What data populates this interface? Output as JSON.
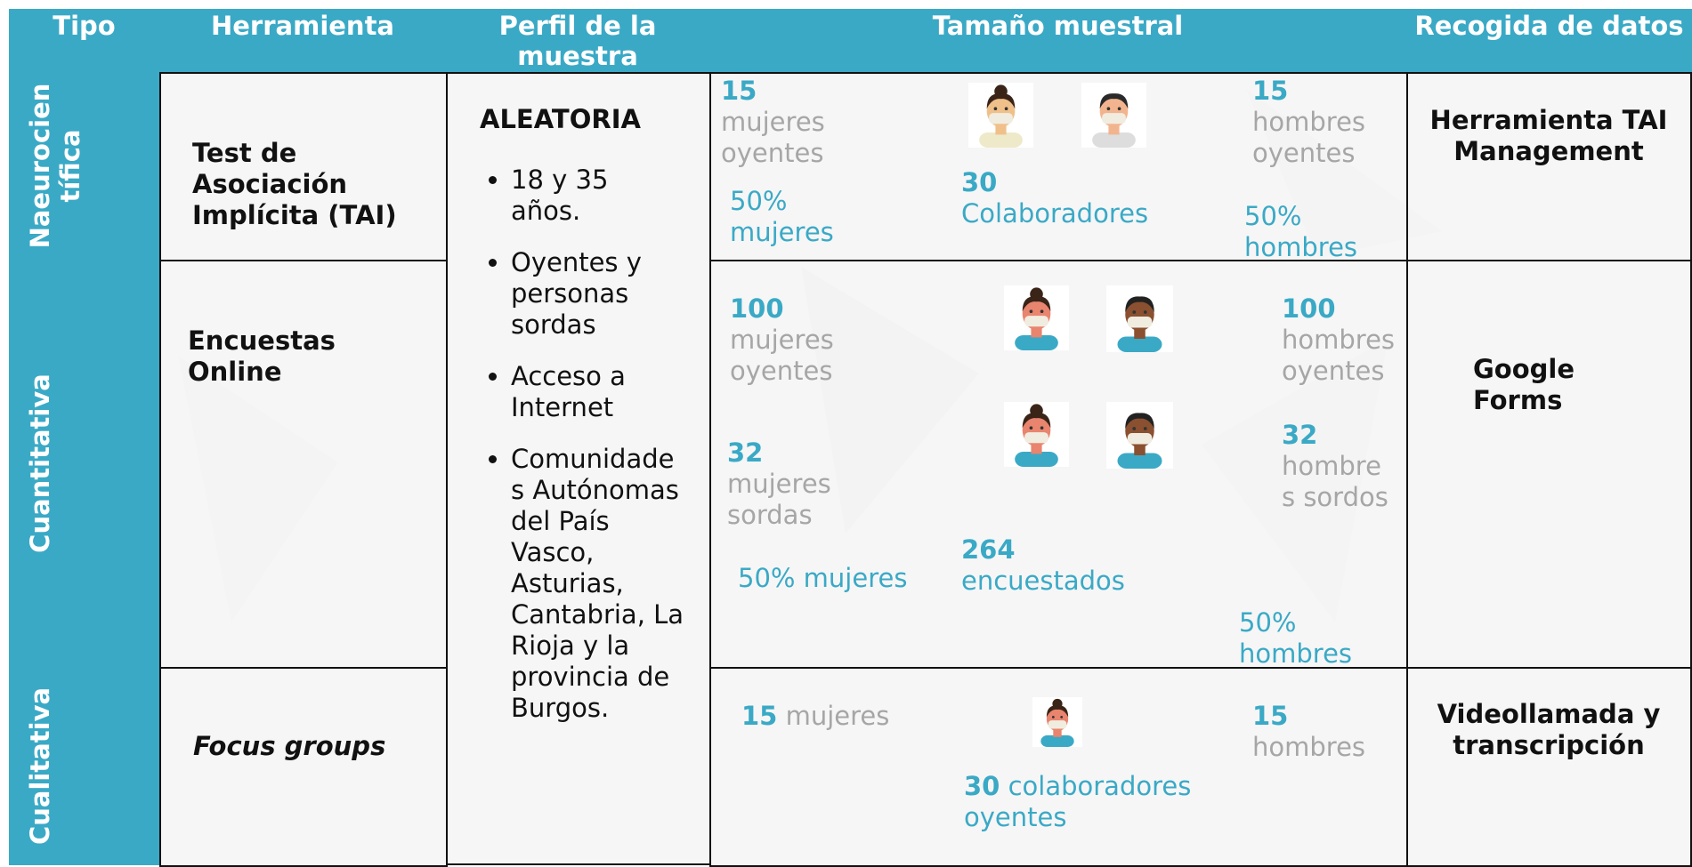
{
  "header": [
    "Tipo",
    "Herramienta",
    "Perfil de la muestra",
    "Tamaño muestral",
    "Recogida de datos"
  ],
  "profile": {
    "title": "ALEATORIA",
    "items": [
      "18 y 35 años.",
      "Oyentes y personas sordas",
      "Acceso a Internet",
      "Comunidades Autónomas del País Vasco, Asturias, Cantabria, La Rioja y la provincia de Burgos."
    ]
  },
  "rows": [
    {
      "tipo": "Naeurocientífica",
      "herramienta": "Test de Asociación Implícita (TAI)",
      "recogida": "Herramienta TAI Management",
      "sample": [
        {
          "number": "15",
          "text": "mujeres oyentes",
          "color": "#a6a6a6"
        },
        {
          "text": "50% mujeres",
          "color": "#3aa9c6"
        },
        {
          "number": "30",
          "text": "Colaboradores",
          "color": "#3aa9c6"
        },
        {
          "number": "15",
          "text": "hombres oyentes",
          "color": "#a6a6a6"
        },
        {
          "text": "50% hombres",
          "color": "#3aa9c6"
        }
      ]
    },
    {
      "tipo": "Cuantitativa",
      "herramienta": "Encuestas Online",
      "recogida": "Google Forms",
      "sample": [
        {
          "number": "100",
          "text": "mujeres oyentes",
          "color": "#a6a6a6"
        },
        {
          "number": "100",
          "text": "hombres oyentes",
          "color": "#a6a6a6"
        },
        {
          "number": "32",
          "text": "mujeres sordas",
          "color": "#a6a6a6"
        },
        {
          "number": "32",
          "text": "hombres sordos",
          "color": "#a6a6a6"
        },
        {
          "number": "264",
          "text": "encuestados",
          "color": "#3aa9c6"
        },
        {
          "text": "50% mujeres",
          "color": "#3aa9c6"
        },
        {
          "text": "50% hombres",
          "color": "#3aa9c6"
        }
      ]
    },
    {
      "tipo": "Cualitativa",
      "herramienta": "Focus groups",
      "recogida": "Videollamada y transcripción",
      "sample": [
        {
          "number": "15",
          "text": "mujeres",
          "color": "#a6a6a6"
        },
        {
          "number": "15",
          "text": "hombres",
          "color": "#a6a6a6"
        },
        {
          "number": "30",
          "text": "colaboradores oyentes",
          "color": "#3aa9c6"
        }
      ]
    }
  ]
}
